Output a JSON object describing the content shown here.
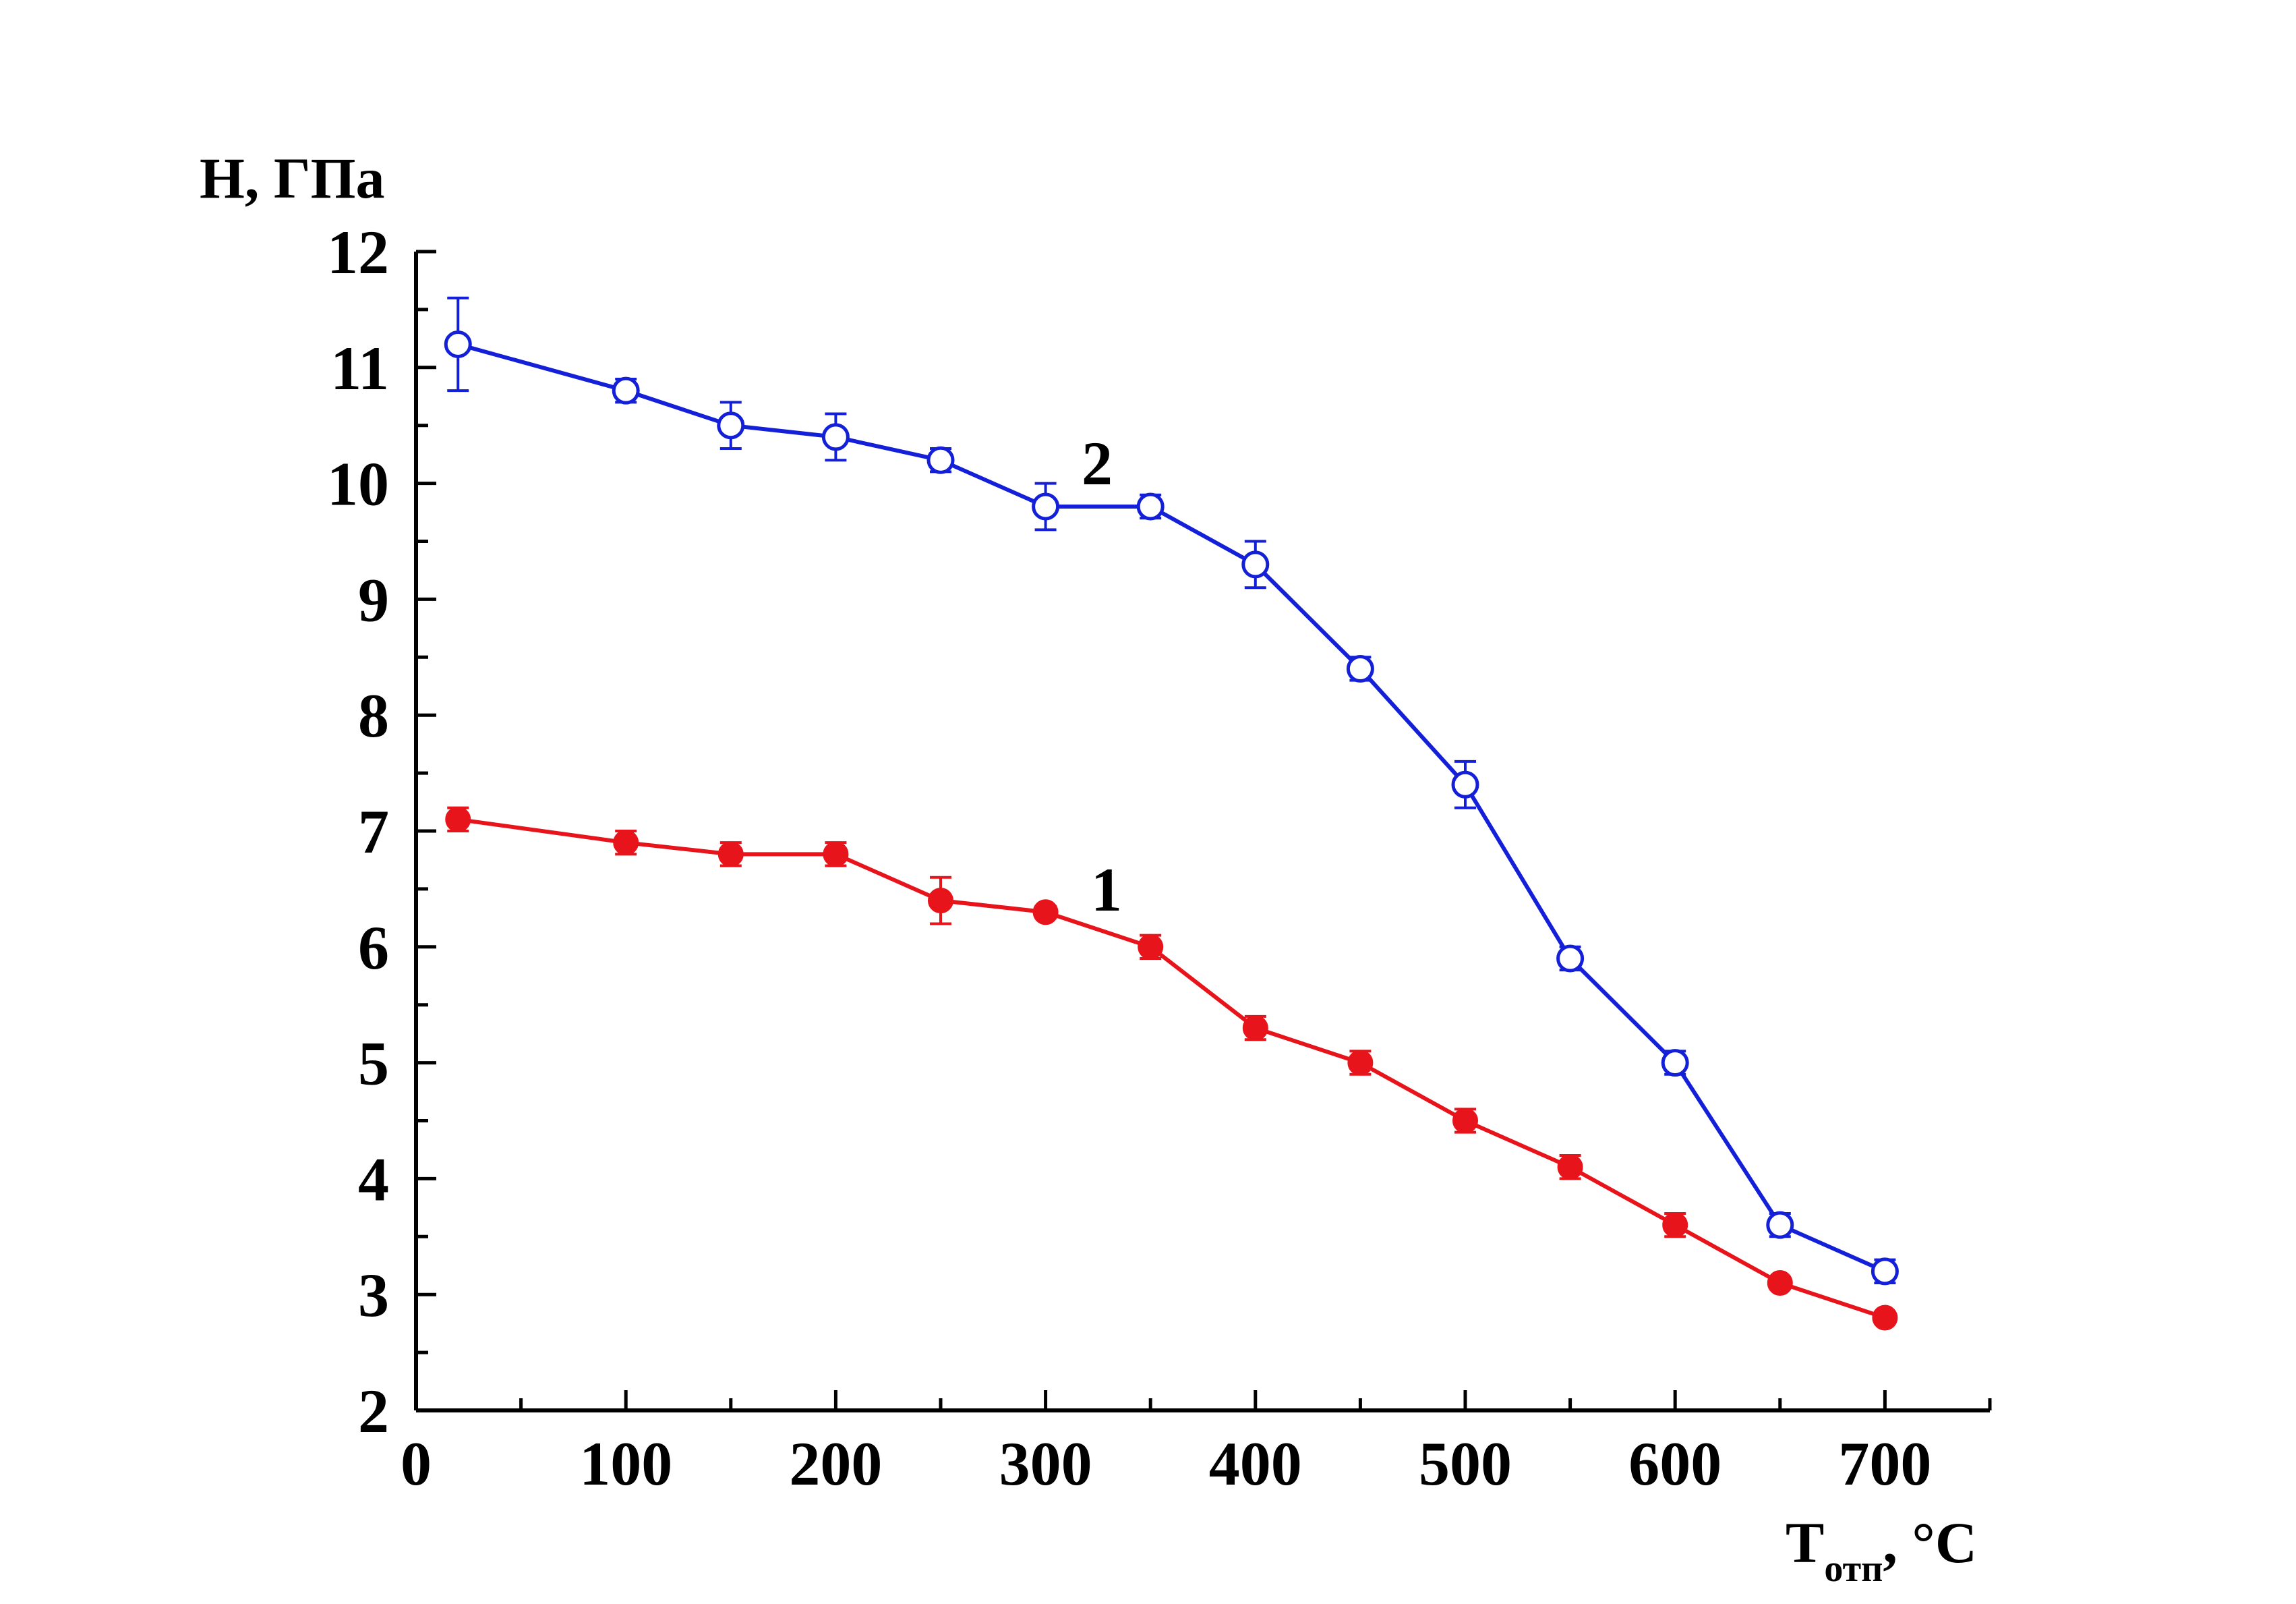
{
  "chart_data": {
    "type": "line",
    "ylabel": "H, ГПа",
    "xlabel": "T",
    "xlabel_subscript": "отп",
    "xlabel_suffix": ", °C",
    "xlim": [
      0,
      750
    ],
    "ylim": [
      2,
      12
    ],
    "x_ticks": [
      "0",
      "100",
      "200",
      "300",
      "400",
      "500",
      "600",
      "700"
    ],
    "y_ticks": [
      "2",
      "3",
      "4",
      "5",
      "6",
      "7",
      "8",
      "9",
      "10",
      "11",
      "12"
    ],
    "grid": false,
    "legend": "none",
    "series": [
      {
        "name": "1",
        "color": "#e8141b",
        "marker": "filled-circle",
        "x": [
          20,
          100,
          150,
          200,
          250,
          300,
          350,
          400,
          450,
          500,
          550,
          600,
          650,
          700
        ],
        "y": [
          7.1,
          6.9,
          6.8,
          6.8,
          6.4,
          6.3,
          6.0,
          5.3,
          5.0,
          4.5,
          4.1,
          3.6,
          3.1,
          2.8
        ],
        "err": [
          0.1,
          0.1,
          0.1,
          0.1,
          0.2,
          0.05,
          0.1,
          0.1,
          0.1,
          0.1,
          0.1,
          0.1,
          0.05,
          0.05
        ]
      },
      {
        "name": "2",
        "color": "#1420d8",
        "marker": "open-circle",
        "x": [
          20,
          100,
          150,
          200,
          250,
          300,
          350,
          400,
          450,
          500,
          550,
          600,
          650,
          700
        ],
        "y": [
          11.2,
          10.8,
          10.5,
          10.4,
          10.2,
          9.8,
          9.8,
          9.3,
          8.4,
          7.4,
          5.9,
          5.0,
          3.6,
          3.2
        ],
        "err": [
          0.4,
          0.1,
          0.2,
          0.2,
          0.1,
          0.2,
          0.1,
          0.2,
          0.1,
          0.2,
          0.1,
          0.1,
          0.1,
          0.1
        ]
      }
    ]
  }
}
